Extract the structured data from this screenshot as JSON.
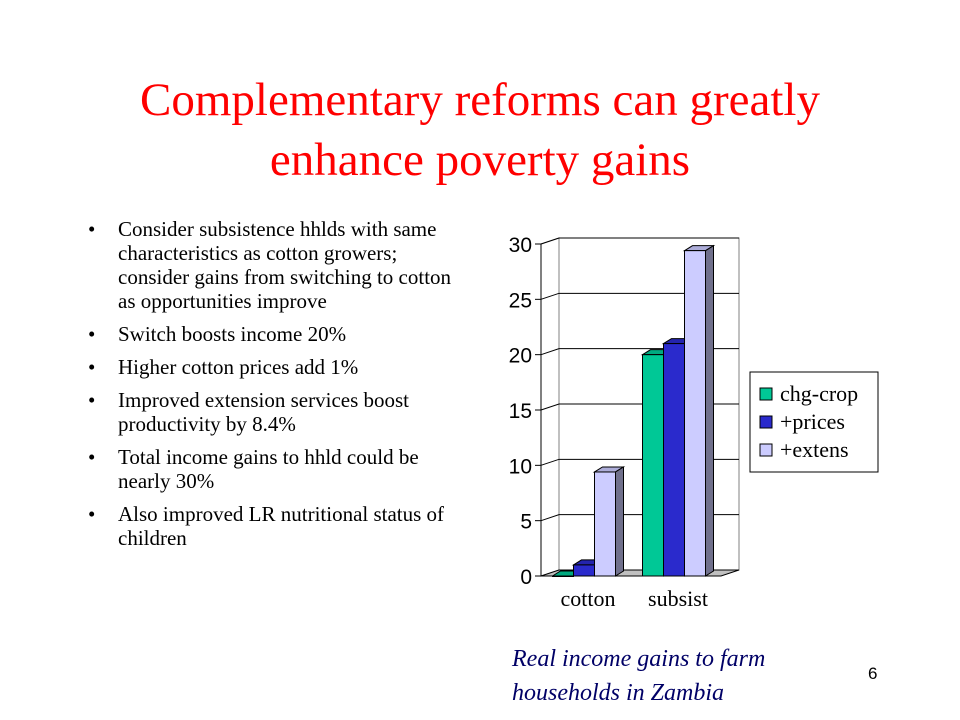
{
  "slide": {
    "title_line1": "Complementary reforms can greatly",
    "title_line2": "enhance poverty gains",
    "bullet_symbol": "•",
    "bullets": [
      "Consider subsistence hhlds with same characteristics as cotton growers; consider gains from switching to cotton as opportunities improve",
      "Switch boosts income 20%",
      "Higher cotton prices add 1%",
      "Improved extension services boost productivity by 8.4%",
      "Total income gains to hhld could be nearly 30%",
      "Also improved LR nutritional status of children"
    ],
    "caption_line1": "Real income gains to farm",
    "caption_line2": "households in Zambia",
    "page_number": "6"
  },
  "chart_data": {
    "type": "bar",
    "categories": [
      "cotton",
      "subsist"
    ],
    "series": [
      {
        "name": "chg-crop",
        "values": [
          0,
          20
        ],
        "color": "#00c896"
      },
      {
        "name": "+prices",
        "values": [
          1,
          21
        ],
        "color": "#2a2acc"
      },
      {
        "name": "+extens",
        "values": [
          9.4,
          29.4
        ],
        "color": "#ccccff"
      }
    ],
    "ylim": [
      0,
      30
    ],
    "yticks": [
      0,
      5,
      10,
      15,
      20,
      25,
      30
    ],
    "grid": true,
    "legend": "right",
    "three_d": true
  }
}
